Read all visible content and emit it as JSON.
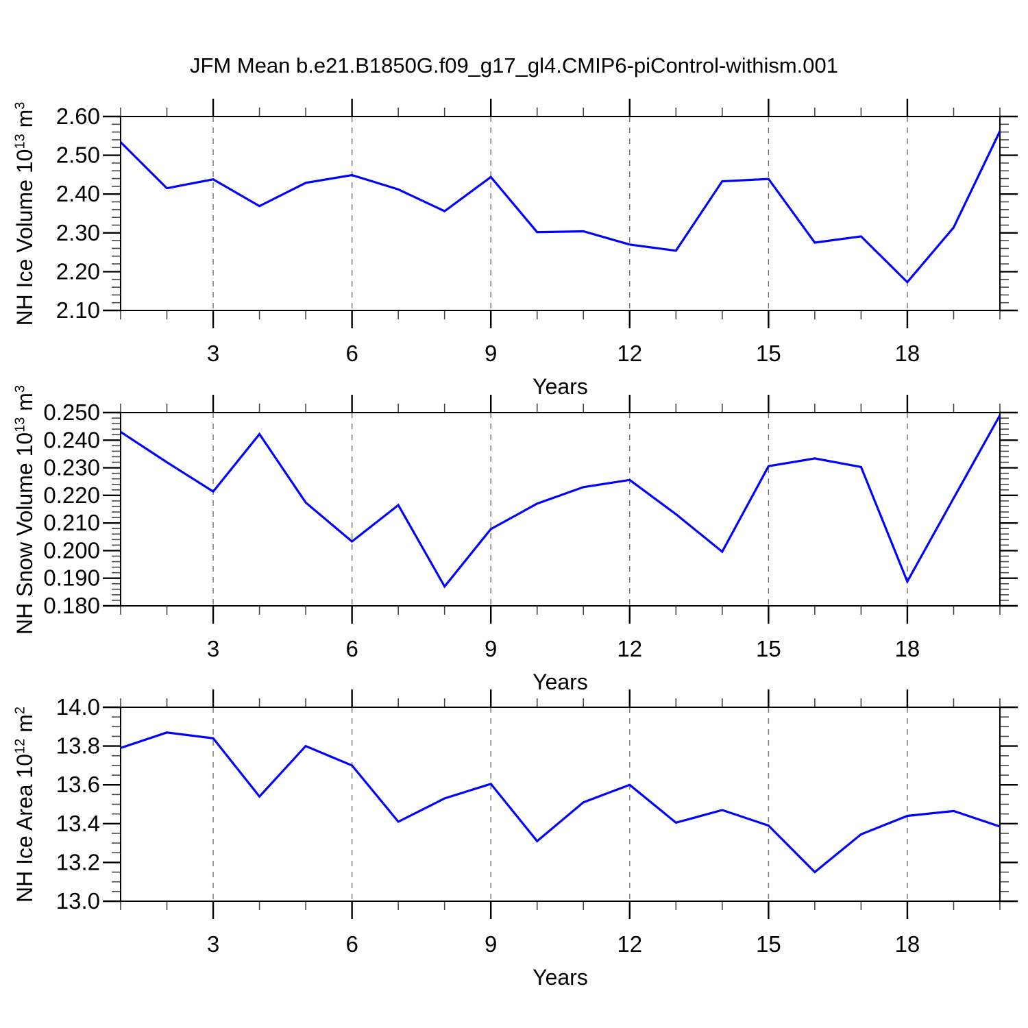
{
  "title": "JFM Mean b.e21.B1850G.f09_g17_gl4.CMIP6-piControl-withism.001",
  "colors": {
    "line": "#0000ff",
    "grid": "#7a7a7a",
    "axis": "#000000",
    "minor_tick": "#444444",
    "text": "#000000"
  },
  "chart_data": [
    {
      "type": "line",
      "name": "nh-ice-volume",
      "ylabel": {
        "base": "NH Ice Volume 10",
        "exp": "13",
        "unit": " m",
        "unit_exp": "3"
      },
      "xlabel": "Years",
      "x": [
        1,
        2,
        3,
        4,
        5,
        6,
        7,
        8,
        9,
        10,
        11,
        12,
        13,
        14,
        15,
        16,
        17,
        18,
        19,
        20
      ],
      "values": [
        2.534,
        2.415,
        2.438,
        2.369,
        2.429,
        2.449,
        2.412,
        2.356,
        2.444,
        2.302,
        2.304,
        2.27,
        2.254,
        2.433,
        2.439,
        2.275,
        2.291,
        2.173,
        2.314,
        2.562
      ],
      "xlim": [
        1,
        20
      ],
      "ylim": [
        2.1,
        2.6
      ],
      "ytick_values": [
        2.1,
        2.2,
        2.3,
        2.4,
        2.5,
        2.6
      ],
      "ytick_labels": [
        "2.10",
        "2.20",
        "2.30",
        "2.40",
        "2.50",
        "2.60"
      ],
      "ytick_minor_step": 0.02,
      "xtick_values": [
        3,
        6,
        9,
        12,
        15,
        18
      ],
      "xtick_labels": [
        "3",
        "6",
        "9",
        "12",
        "15",
        "18"
      ],
      "xtick_minor_step": 1,
      "grid_on_major_x": true,
      "legend": "none"
    },
    {
      "type": "line",
      "name": "nh-snow-volume",
      "ylabel": {
        "base": "NH Snow Volume 10",
        "exp": "13",
        "unit": " m",
        "unit_exp": "3"
      },
      "xlabel": "Years",
      "x": [
        1,
        2,
        3,
        4,
        5,
        6,
        7,
        8,
        9,
        10,
        11,
        12,
        13,
        14,
        15,
        16,
        17,
        18,
        19,
        20
      ],
      "values": [
        0.243,
        0.232,
        0.2214,
        0.2422,
        0.2174,
        0.2033,
        0.2165,
        0.187,
        0.2078,
        0.217,
        0.223,
        0.2256,
        0.2132,
        0.1996,
        0.2306,
        0.2334,
        0.2303,
        0.1888,
        0.219,
        0.249
      ],
      "xlim": [
        1,
        20
      ],
      "ylim": [
        0.18,
        0.25
      ],
      "ytick_values": [
        0.18,
        0.19,
        0.2,
        0.21,
        0.22,
        0.23,
        0.24,
        0.25
      ],
      "ytick_labels": [
        "0.180",
        "0.190",
        "0.200",
        "0.210",
        "0.220",
        "0.230",
        "0.240",
        "0.250"
      ],
      "ytick_minor_step": 0.002,
      "xtick_values": [
        3,
        6,
        9,
        12,
        15,
        18
      ],
      "xtick_labels": [
        "3",
        "6",
        "9",
        "12",
        "15",
        "18"
      ],
      "xtick_minor_step": 1,
      "grid_on_major_x": true,
      "legend": "none"
    },
    {
      "type": "line",
      "name": "nh-ice-area",
      "ylabel": {
        "base": "NH Ice Area 10",
        "exp": "12",
        "unit": " m",
        "unit_exp": "2"
      },
      "xlabel": "Years",
      "x": [
        1,
        2,
        3,
        4,
        5,
        6,
        7,
        8,
        9,
        10,
        11,
        12,
        13,
        14,
        15,
        16,
        17,
        18,
        19,
        20
      ],
      "values": [
        13.79,
        13.87,
        13.84,
        13.54,
        13.8,
        13.7,
        13.41,
        13.53,
        13.605,
        13.31,
        13.51,
        13.6,
        13.405,
        13.47,
        13.39,
        13.15,
        13.345,
        13.44,
        13.465,
        13.385
      ],
      "xlim": [
        1,
        20
      ],
      "ylim": [
        13.0,
        14.0
      ],
      "ytick_values": [
        13.0,
        13.2,
        13.4,
        13.6,
        13.8,
        14.0
      ],
      "ytick_labels": [
        "13.0",
        "13.2",
        "13.4",
        "13.6",
        "13.8",
        "14.0"
      ],
      "ytick_minor_step": 0.05,
      "xtick_values": [
        3,
        6,
        9,
        12,
        15,
        18
      ],
      "xtick_labels": [
        "3",
        "6",
        "9",
        "12",
        "15",
        "18"
      ],
      "xtick_minor_step": 1,
      "grid_on_major_x": true,
      "legend": "none"
    }
  ]
}
